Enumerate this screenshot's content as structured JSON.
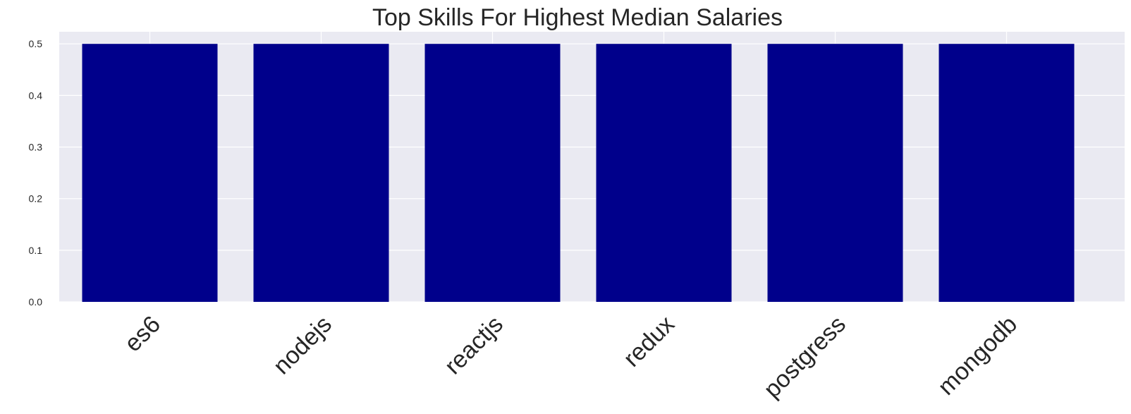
{
  "chart_data": {
    "type": "bar",
    "title": "Top Skills For Highest Median Salaries",
    "xlabel": "",
    "ylabel": "",
    "categories": [
      "es6",
      "nodejs",
      "reactjs",
      "redux",
      "postgress",
      "mongodb"
    ],
    "values": [
      0.5,
      0.5,
      0.5,
      0.5,
      0.5,
      0.5
    ],
    "ylim": [
      0,
      0.525
    ],
    "yticks": [
      0.0,
      0.1,
      0.2,
      0.3,
      0.4,
      0.5
    ],
    "ytick_labels": [
      "0.0",
      "0.1",
      "0.2",
      "0.3",
      "0.4",
      "0.5"
    ],
    "grid": true,
    "legend": "none"
  },
  "colors": {
    "bar": "#00008b",
    "plot_background": "#eaeaf2",
    "grid": "#ffffff",
    "text": "#262626"
  }
}
